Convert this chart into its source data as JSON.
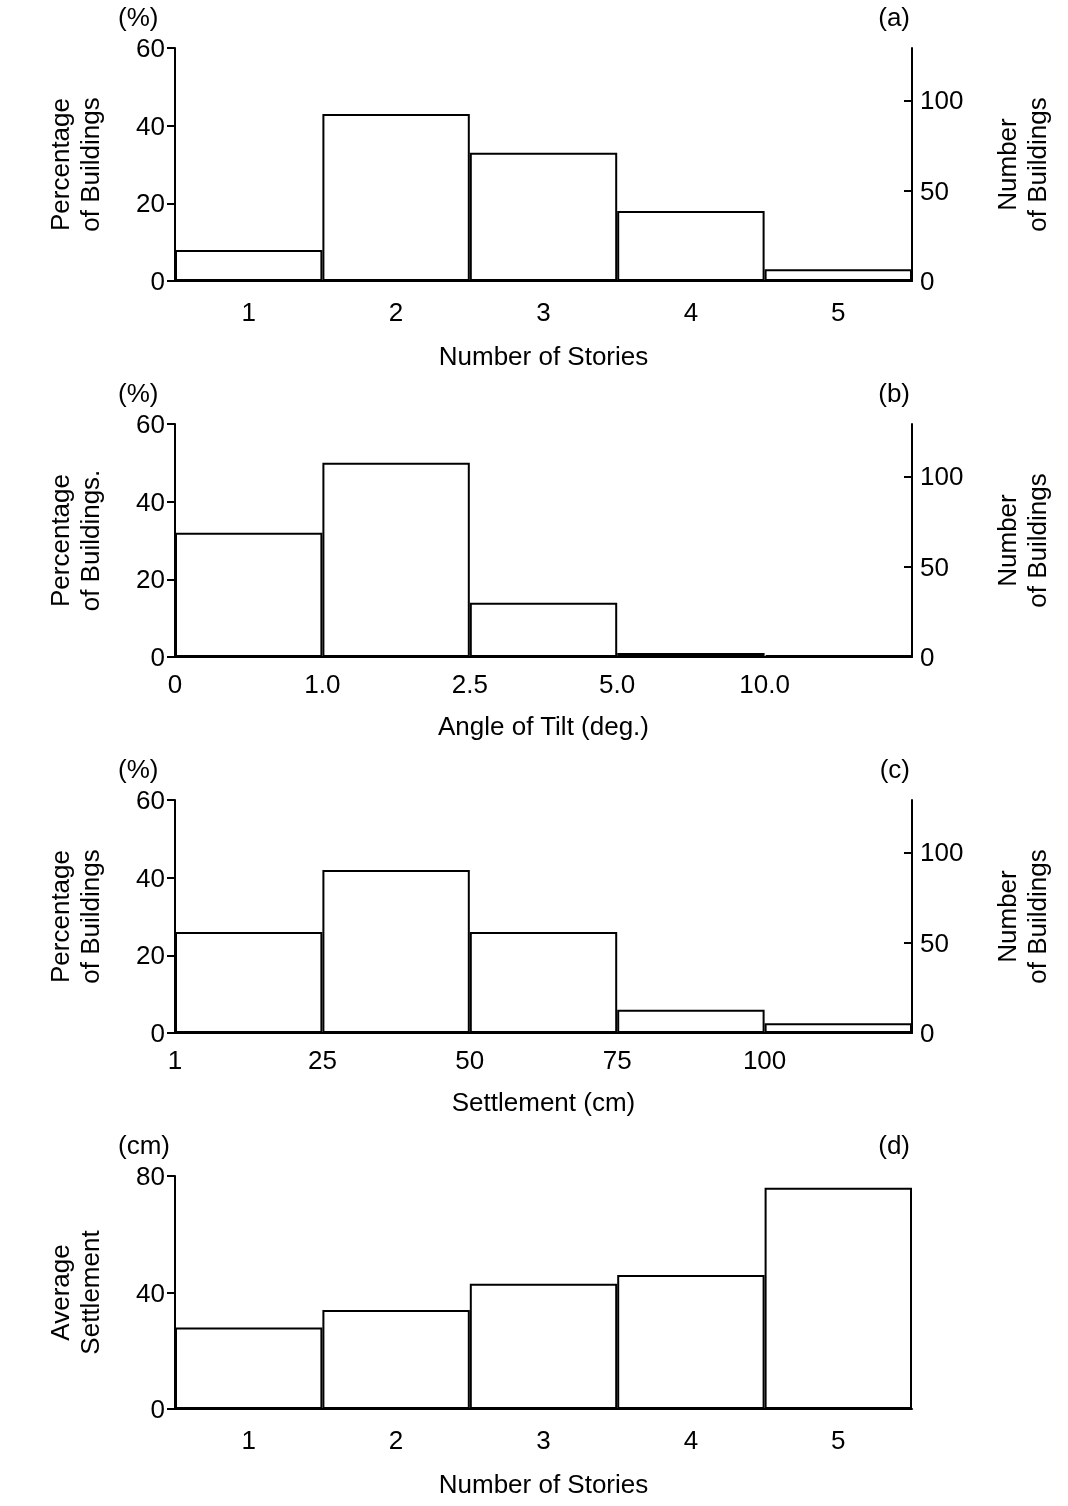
{
  "chart_data": [
    {
      "type": "bar",
      "title": "(a)",
      "annotations": [
        "(%)"
      ],
      "xlabel": "Number of Stories",
      "ylabel": "Percentage\nof Buildings",
      "y2label": "Number\nof Buildings",
      "categories": [
        "1",
        "2",
        "3",
        "4",
        "5"
      ],
      "values": [
        8,
        43,
        33,
        18,
        3
      ],
      "color": "#ffffff",
      "ylim": [
        0,
        60
      ],
      "yticks": [
        0,
        20,
        40,
        60
      ],
      "y2lim": [
        0,
        129
      ],
      "y2ticks": [
        0,
        50,
        100
      ]
    },
    {
      "type": "bar",
      "title": "(b)",
      "annotations": [
        "(%)"
      ],
      "xlabel": "Angle of Tilt (deg.)",
      "ylabel": "Percentage\nof Buildings.",
      "y2label": "Number\nof Buildings",
      "categories": [
        "0",
        "1.0",
        "2.5",
        "5.0",
        "10.0",
        null
      ],
      "values": [
        32,
        50,
        14,
        1,
        0.5,
        null
      ],
      "colors": [
        "#ffffff",
        "#ffffff",
        "#ffffff",
        "#ffffff",
        "#000000",
        null
      ],
      "ylim": [
        0,
        60
      ],
      "yticks": [
        0,
        20,
        40,
        60
      ],
      "y2lim": [
        0,
        129
      ],
      "y2ticks": [
        0,
        50,
        100
      ]
    },
    {
      "type": "bar",
      "title": "(c)",
      "annotations": [
        "(%)"
      ],
      "xlabel": "Settlement (cm)",
      "ylabel": "Percentage\nof Buildings",
      "y2label": "Number\nof Buildings",
      "categories": [
        "1",
        "25",
        "50",
        "75",
        "100",
        null
      ],
      "values": [
        26,
        42,
        26,
        6,
        2.5,
        null
      ],
      "color": "#ffffff",
      "ylim": [
        0,
        60
      ],
      "yticks": [
        0,
        20,
        40,
        60
      ],
      "y2lim": [
        0,
        129
      ],
      "y2ticks": [
        0,
        50,
        100
      ]
    },
    {
      "type": "bar",
      "title": "(d)",
      "annotations": [
        "(cm)"
      ],
      "xlabel": "Number of Stories",
      "ylabel": "Average\nSettlement",
      "categories": [
        "1",
        "2",
        "3",
        "4",
        "5"
      ],
      "values": [
        28,
        34,
        43,
        46,
        76
      ],
      "color": "#ffffff",
      "ylim": [
        0,
        80
      ],
      "yticks": [
        0,
        40,
        80
      ]
    }
  ]
}
